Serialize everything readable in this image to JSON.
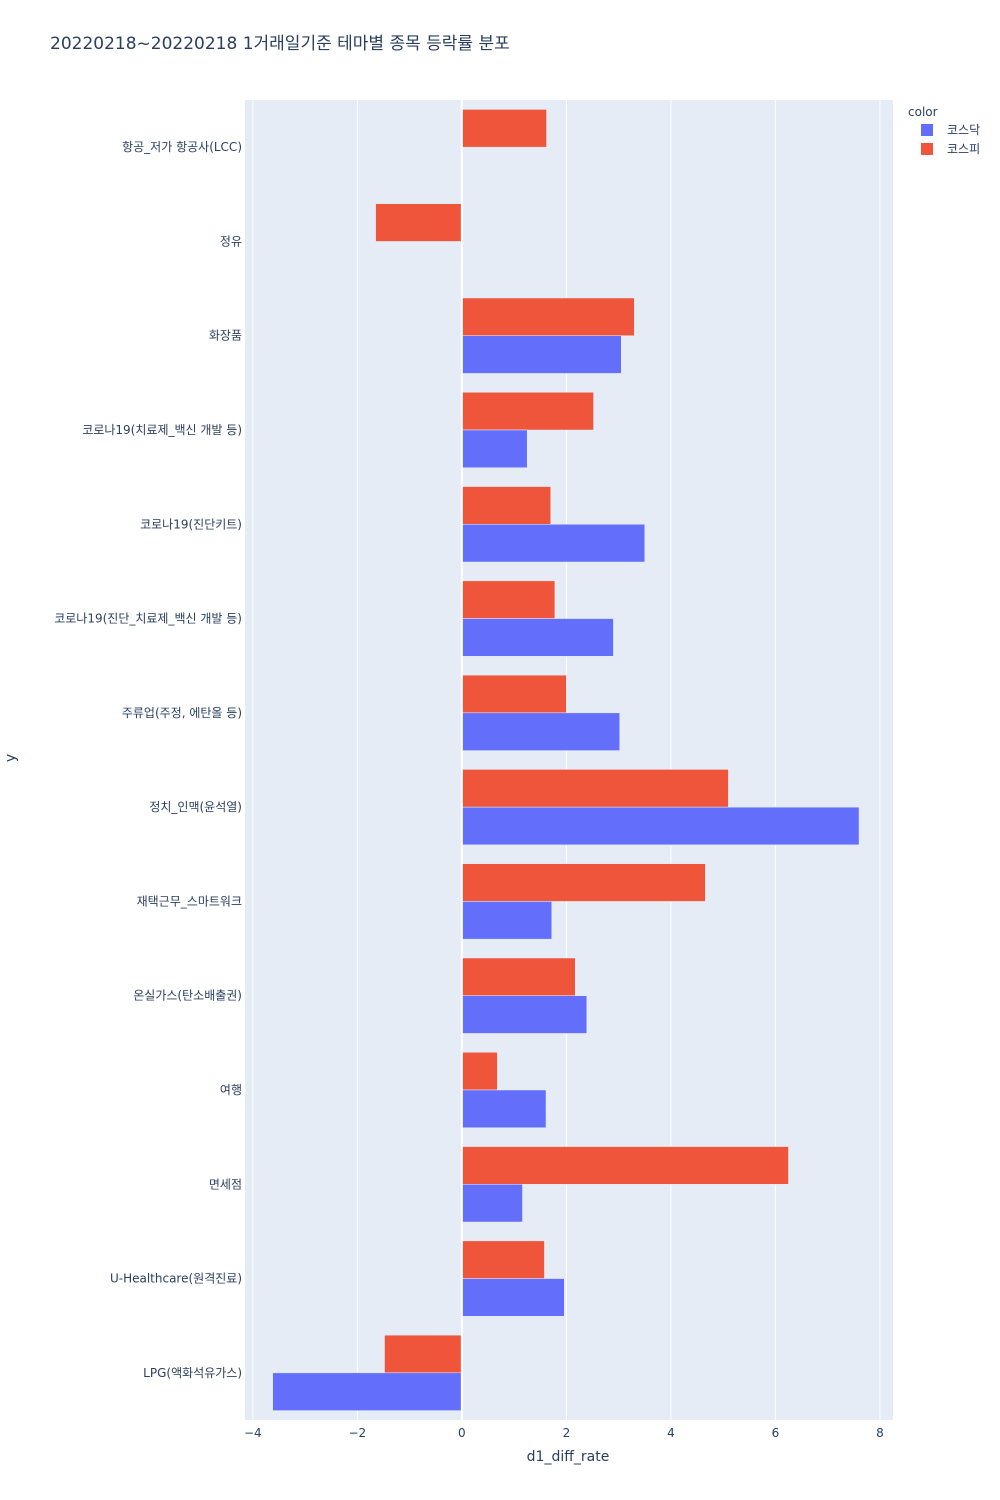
{
  "chart_data": {
    "type": "bar",
    "orientation": "horizontal",
    "barmode": "group",
    "title": "20220218~20220218 1거래일기준 테마별 종목 등락률 분포",
    "xlabel": "d1_diff_rate",
    "ylabel": "y",
    "xlim": [
      -4.15,
      8.25
    ],
    "xticks": [
      -4,
      -2,
      0,
      2,
      4,
      6,
      8
    ],
    "xtick_labels": [
      "−4",
      "−2",
      "0",
      "2",
      "4",
      "6",
      "8"
    ],
    "grid": true,
    "legend_title": "color",
    "legend_position": "top-right",
    "categories": [
      "항공_저가 항공사(LCC)",
      "정유",
      "화장품",
      "코로나19(치료제_백신 개발 등)",
      "코로나19(진단키트)",
      "코로나19(진단_치료제_백신 개발 등)",
      "주류업(주정, 에탄올 등)",
      "정치_인맥(윤석열)",
      "재택근무_스마트워크",
      "온실가스(탄소배출권)",
      "여행",
      "면세점",
      "U-Healthcare(원격진료)",
      "LPG(액화석유가스)"
    ],
    "series": [
      {
        "name": "코스닥",
        "color": "#636efa",
        "values": [
          null,
          null,
          3.05,
          1.25,
          3.5,
          2.9,
          3.02,
          7.6,
          1.72,
          2.39,
          1.61,
          1.16,
          1.96,
          -3.62
        ]
      },
      {
        "name": "코스피",
        "color": "#ef553b",
        "values": [
          1.62,
          -1.65,
          3.3,
          2.52,
          1.7,
          1.78,
          2.0,
          5.1,
          4.66,
          2.17,
          0.68,
          6.25,
          1.58,
          -1.48
        ]
      }
    ]
  },
  "colors": {
    "plot_background": "#e5ecf6",
    "gridline": "#ffffff",
    "text": "#2a3f5f"
  }
}
